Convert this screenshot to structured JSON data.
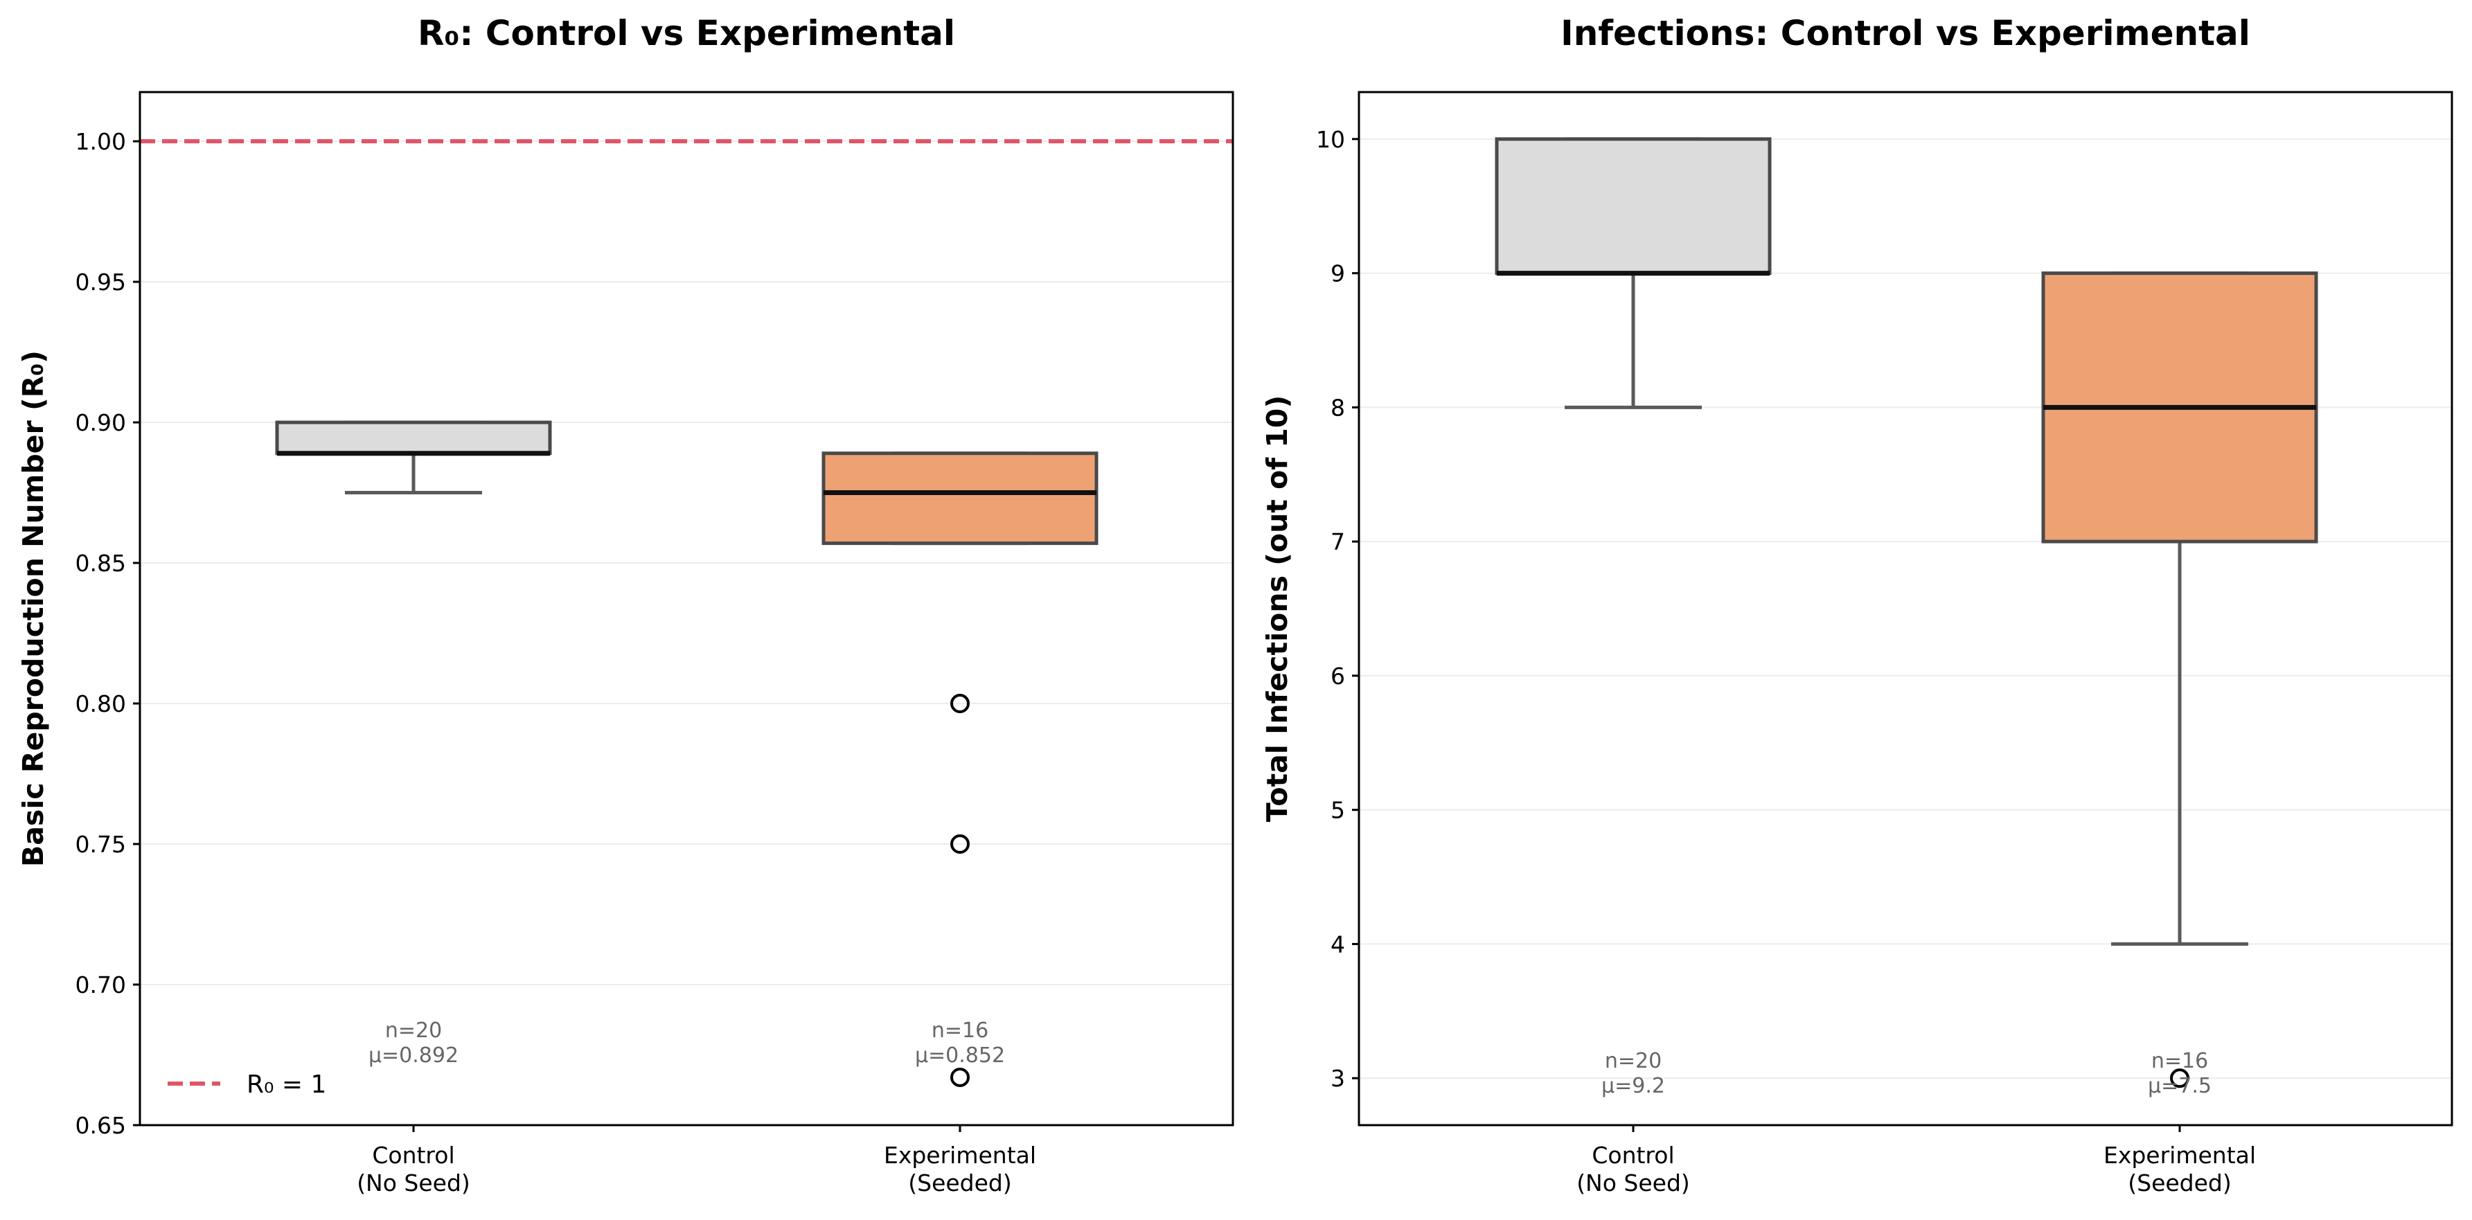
{
  "chart_data": [
    {
      "type": "box",
      "title": "R₀: Control vs Experimental",
      "xlabel": "",
      "ylabel": "Basic Reproduction Number (R₀)",
      "ylim": [
        0.65,
        1.0175
      ],
      "yticks": [
        "0.65",
        "0.70",
        "0.75",
        "0.80",
        "0.85",
        "0.90",
        "0.95",
        "1.00"
      ],
      "grid": "horizontal",
      "categories": [
        "Control\n(No Seed)",
        "Experimental\n(Seeded)"
      ],
      "boxes": [
        {
          "name": "Control\n(No Seed)",
          "whisker_low": 0.875,
          "q1": 0.889,
          "median": 0.889,
          "q3": 0.9,
          "whisker_high": 0.9,
          "outliers": [],
          "color": "#dcdcdc",
          "annotation": [
            "n=20",
            "μ=0.892"
          ]
        },
        {
          "name": "Experimental\n(Seeded)",
          "whisker_low": 0.857,
          "q1": 0.857,
          "median": 0.875,
          "q3": 0.889,
          "whisker_high": 0.889,
          "outliers": [
            0.8,
            0.75,
            0.667
          ],
          "color": "#eea274",
          "annotation": [
            "n=16",
            "μ=0.852"
          ]
        }
      ],
      "reference_line": {
        "value": 1.0,
        "label": "R₀ = 1",
        "color": "#e05568",
        "style": "dashed"
      },
      "legend": {
        "position": "lower-left",
        "entries": [
          "R₀ = 1"
        ]
      }
    },
    {
      "type": "box",
      "title": "Infections: Control vs Experimental",
      "xlabel": "",
      "ylabel": "Total Infections (out of 10)",
      "ylim": [
        2.65,
        10.35
      ],
      "yticks": [
        "3",
        "4",
        "5",
        "6",
        "7",
        "8",
        "9",
        "10"
      ],
      "grid": "horizontal",
      "categories": [
        "Control\n(No Seed)",
        "Experimental\n(Seeded)"
      ],
      "boxes": [
        {
          "name": "Control\n(No Seed)",
          "whisker_low": 8,
          "q1": 9,
          "median": 9,
          "q3": 10,
          "whisker_high": 10,
          "outliers": [],
          "color": "#dcdcdc",
          "annotation": [
            "n=20",
            "μ=9.2"
          ]
        },
        {
          "name": "Experimental\n(Seeded)",
          "whisker_low": 4,
          "q1": 7,
          "median": 8,
          "q3": 9,
          "whisker_high": 9,
          "outliers": [
            3
          ],
          "color": "#eea274",
          "annotation": [
            "n=16",
            "μ=7.5"
          ]
        }
      ]
    }
  ]
}
